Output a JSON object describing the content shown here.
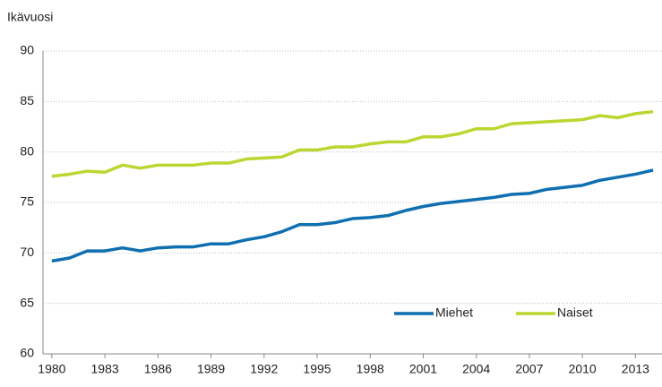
{
  "chart_data": {
    "type": "line",
    "ylabel": "Ikävuosi",
    "x": [
      1980,
      1981,
      1982,
      1983,
      1984,
      1985,
      1986,
      1987,
      1988,
      1989,
      1990,
      1991,
      1992,
      1993,
      1994,
      1995,
      1996,
      1997,
      1998,
      1999,
      2000,
      2001,
      2002,
      2003,
      2004,
      2005,
      2006,
      2007,
      2008,
      2009,
      2010,
      2011,
      2012,
      2013,
      2014
    ],
    "series": [
      {
        "name": "Miehet",
        "color": "#0f6fb0",
        "values": [
          69.2,
          69.5,
          70.2,
          70.2,
          70.5,
          70.2,
          70.5,
          70.6,
          70.6,
          70.9,
          70.9,
          71.3,
          71.6,
          72.1,
          72.8,
          72.8,
          73.0,
          73.4,
          73.5,
          73.7,
          74.2,
          74.6,
          74.9,
          75.1,
          75.3,
          75.5,
          75.8,
          75.9,
          76.3,
          76.5,
          76.7,
          77.2,
          77.5,
          77.8,
          78.2
        ]
      },
      {
        "name": "Naiset",
        "color": "#bcd631",
        "values": [
          77.6,
          77.8,
          78.1,
          78.0,
          78.7,
          78.4,
          78.7,
          78.7,
          78.7,
          78.9,
          78.9,
          79.3,
          79.4,
          79.5,
          80.2,
          80.2,
          80.5,
          80.5,
          80.8,
          81.0,
          81.0,
          81.5,
          81.5,
          81.8,
          82.3,
          82.3,
          82.8,
          82.9,
          83.0,
          83.1,
          83.2,
          83.6,
          83.4,
          83.8,
          84.0
        ]
      }
    ],
    "xlim": [
      1979.5,
      2014.5
    ],
    "xticks": [
      1980,
      1983,
      1986,
      1989,
      1992,
      1995,
      1998,
      2001,
      2004,
      2007,
      2010,
      2013
    ],
    "ylim": [
      60,
      90
    ],
    "yticks": [
      60,
      65,
      70,
      75,
      80,
      85,
      90
    ],
    "grid": true,
    "legend": "lower right"
  }
}
